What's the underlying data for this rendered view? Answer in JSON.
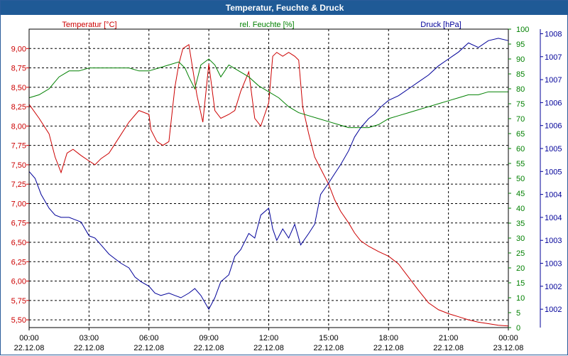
{
  "window": {
    "title": "Temperatur, Feuchte & Druck"
  },
  "chart_data": {
    "type": "line",
    "title": "Temperatur, Feuchte & Druck",
    "colors": {
      "temperature": "#cc0000",
      "humidity": "#008000",
      "pressure": "#000099",
      "grid": "#000000"
    },
    "x_ticks": [
      {
        "time": "00:00",
        "date": "22.12.08"
      },
      {
        "time": "03:00",
        "date": "22.12.08"
      },
      {
        "time": "06:00",
        "date": "22.12.08"
      },
      {
        "time": "09:00",
        "date": "22.12.08"
      },
      {
        "time": "12:00",
        "date": "22.12.08"
      },
      {
        "time": "15:00",
        "date": "22.12.08"
      },
      {
        "time": "18:00",
        "date": "22.12.08"
      },
      {
        "time": "21:00",
        "date": "22.12.08"
      },
      {
        "time": "00:00",
        "date": "23.12.08"
      }
    ],
    "axes": {
      "temperature": {
        "label": "Temperatur [°C]",
        "range": [
          5.4,
          9.25
        ],
        "ticks": [
          "5,50",
          "5,75",
          "6,00",
          "6,25",
          "6,50",
          "6,75",
          "7,00",
          "7,25",
          "7,50",
          "7,75",
          "8,00",
          "8,25",
          "8,50",
          "8,75",
          "9,00"
        ]
      },
      "humidity": {
        "label": "rel. Feuchte [%]",
        "range": [
          0,
          100
        ],
        "ticks": [
          "0",
          "5",
          "10",
          "15",
          "20",
          "25",
          "30",
          "35",
          "40",
          "45",
          "50",
          "55",
          "60",
          "65",
          "70",
          "75",
          "80",
          "85",
          "90",
          "95",
          "100"
        ]
      },
      "pressure": {
        "label": "Druck [hPa]",
        "range": [
          1001.6,
          1008.1
        ],
        "ticks": [
          "1002",
          "1002",
          "1003",
          "1003",
          "1004",
          "1004",
          "1005",
          "1005",
          "1006",
          "1006",
          "1007",
          "1007",
          "1008"
        ]
      }
    },
    "series": [
      {
        "name": "Temperatur [°C]",
        "axis": "temperature",
        "x_hours": [
          0,
          0.5,
          1,
          1.3,
          1.6,
          1.9,
          2.2,
          2.6,
          3,
          3.3,
          3.6,
          4,
          4.5,
          5,
          5.5,
          6,
          6.1,
          6.4,
          6.7,
          7,
          7.3,
          7.5,
          7.7,
          8,
          8.4,
          8.7,
          8.8,
          9,
          9.3,
          9.6,
          10,
          10.3,
          10.6,
          11,
          11.3,
          11.6,
          12,
          12.2,
          12.4,
          12.7,
          13,
          13.3,
          13.5,
          13.7,
          14,
          14.3,
          14.6,
          15,
          15.3,
          15.6,
          16,
          16.3,
          16.6,
          17,
          17.5,
          18,
          18.5,
          19,
          19.5,
          20,
          20.5,
          21,
          21.5,
          22,
          22.5,
          23,
          23.5,
          24
        ],
        "values": [
          8.28,
          8.1,
          7.9,
          7.6,
          7.4,
          7.65,
          7.7,
          7.62,
          7.55,
          7.5,
          7.58,
          7.65,
          7.85,
          8.05,
          8.2,
          8.15,
          7.95,
          7.8,
          7.75,
          7.8,
          8.5,
          8.8,
          9.0,
          9.05,
          8.4,
          8.05,
          8.3,
          8.8,
          8.2,
          8.1,
          8.15,
          8.2,
          8.45,
          8.7,
          8.1,
          8.0,
          8.3,
          8.9,
          8.95,
          8.9,
          8.95,
          8.9,
          8.85,
          8.25,
          7.9,
          7.6,
          7.45,
          7.25,
          7.05,
          6.9,
          6.75,
          6.62,
          6.52,
          6.45,
          6.38,
          6.32,
          6.22,
          6.05,
          5.88,
          5.72,
          5.63,
          5.58,
          5.54,
          5.5,
          5.47,
          5.45,
          5.43,
          5.42
        ]
      },
      {
        "name": "rel. Feuchte [%]",
        "axis": "humidity",
        "x_hours": [
          0,
          0.5,
          1,
          1.5,
          2,
          2.5,
          3,
          3.5,
          4,
          4.5,
          5,
          5.5,
          6,
          6.5,
          7,
          7.5,
          7.8,
          8,
          8.3,
          8.6,
          9,
          9.3,
          9.6,
          10,
          10.5,
          11,
          11.5,
          12,
          12.5,
          13,
          13.5,
          14,
          14.5,
          15,
          15.5,
          16,
          16.5,
          17,
          17.5,
          18,
          18.5,
          19,
          19.5,
          20,
          20.5,
          21,
          21.5,
          22,
          22.5,
          23,
          23.5,
          24
        ],
        "values": [
          77,
          78,
          80,
          84,
          86,
          86,
          87,
          87,
          87,
          87,
          87,
          86,
          86,
          87,
          88,
          89,
          87,
          84,
          80,
          88,
          90,
          88,
          84,
          88,
          86,
          84,
          81,
          79,
          77,
          74,
          72,
          71,
          70,
          69,
          68,
          67,
          67,
          67,
          68,
          70,
          71,
          72,
          73,
          74,
          75,
          76,
          77,
          78,
          78,
          79,
          79,
          79
        ]
      },
      {
        "name": "Druck [hPa]",
        "axis": "pressure",
        "x_hours": [
          0,
          0.3,
          0.6,
          1,
          1.3,
          1.6,
          2,
          2.3,
          2.6,
          3,
          3.3,
          3.6,
          4,
          4.3,
          4.6,
          5,
          5.3,
          5.6,
          6,
          6.3,
          6.6,
          7,
          7.3,
          7.6,
          8,
          8.3,
          8.6,
          9,
          9.3,
          9.6,
          10,
          10.3,
          10.6,
          11,
          11.3,
          11.6,
          12,
          12.2,
          12.4,
          12.7,
          13,
          13.3,
          13.6,
          14,
          14.3,
          14.6,
          15,
          15.3,
          15.6,
          16,
          16.3,
          16.6,
          17,
          17.3,
          17.6,
          18,
          18.5,
          19,
          19.5,
          20,
          20.5,
          21,
          21.5,
          22,
          22.5,
          23,
          23.5,
          24
        ],
        "values": [
          1005.0,
          1004.85,
          1004.5,
          1004.2,
          1004.05,
          1004.0,
          1004.0,
          1003.95,
          1003.9,
          1003.6,
          1003.55,
          1003.4,
          1003.2,
          1003.1,
          1003.0,
          1002.9,
          1002.7,
          1002.6,
          1002.5,
          1002.35,
          1002.3,
          1002.35,
          1002.3,
          1002.25,
          1002.35,
          1002.45,
          1002.3,
          1002.0,
          1002.25,
          1002.6,
          1002.75,
          1003.15,
          1003.3,
          1003.65,
          1003.55,
          1004.05,
          1004.2,
          1003.75,
          1003.5,
          1003.75,
          1003.55,
          1003.85,
          1003.4,
          1003.65,
          1003.85,
          1004.5,
          1004.75,
          1004.95,
          1005.15,
          1005.45,
          1005.75,
          1005.95,
          1006.15,
          1006.25,
          1006.4,
          1006.55,
          1006.65,
          1006.8,
          1006.95,
          1007.1,
          1007.3,
          1007.45,
          1007.6,
          1007.8,
          1007.7,
          1007.85,
          1007.9,
          1007.85
        ]
      }
    ]
  }
}
